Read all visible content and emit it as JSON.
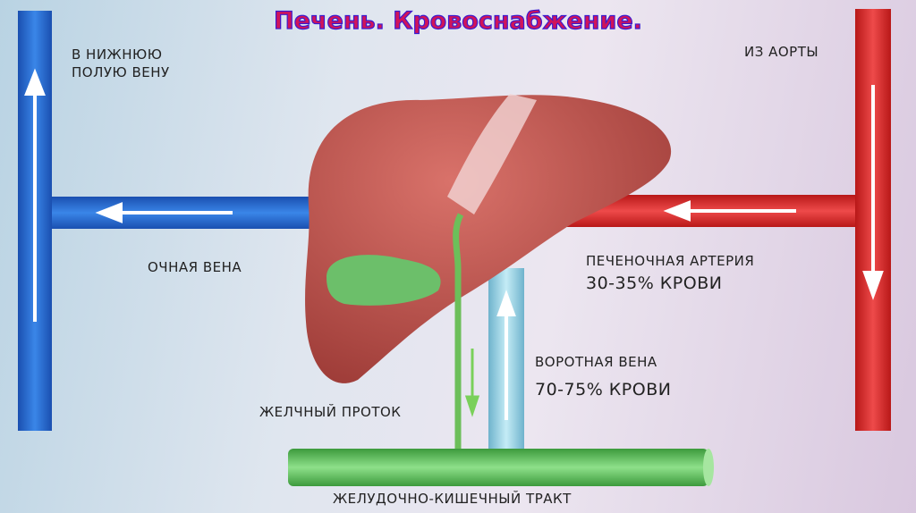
{
  "title": "Печень. Кровоснабжение.",
  "labels": {
    "ivc_line1": "В НИЖНЮЮ",
    "ivc_line2": "ПОЛУЮ ВЕНУ",
    "aorta": "ИЗ АОРТЫ",
    "hepatic_vein": "ОЧНАЯ ВЕНА",
    "hepatic_artery": "ПЕЧЕНОЧНАЯ АРТЕРИЯ",
    "hepatic_artery_share": "30-35% КРОВИ",
    "portal_vein": "ВОРОТНАЯ ВЕНА",
    "portal_vein_share": "70-75% КРОВИ",
    "bile_duct": "ЖЕЛЧНЫЙ ПРОТОК",
    "gi_tract": "ЖЕЛУДОЧНО-КИШЕЧНЫЙ ТРАКТ"
  },
  "colors": {
    "vein": "#1f5fc8",
    "artery": "#d42a2a",
    "portal": "#8fc9dc",
    "bile": "#5aa84a",
    "liver": "#b8504a",
    "title_fill": "#d0145a",
    "title_stroke": "#3a1ad0"
  }
}
